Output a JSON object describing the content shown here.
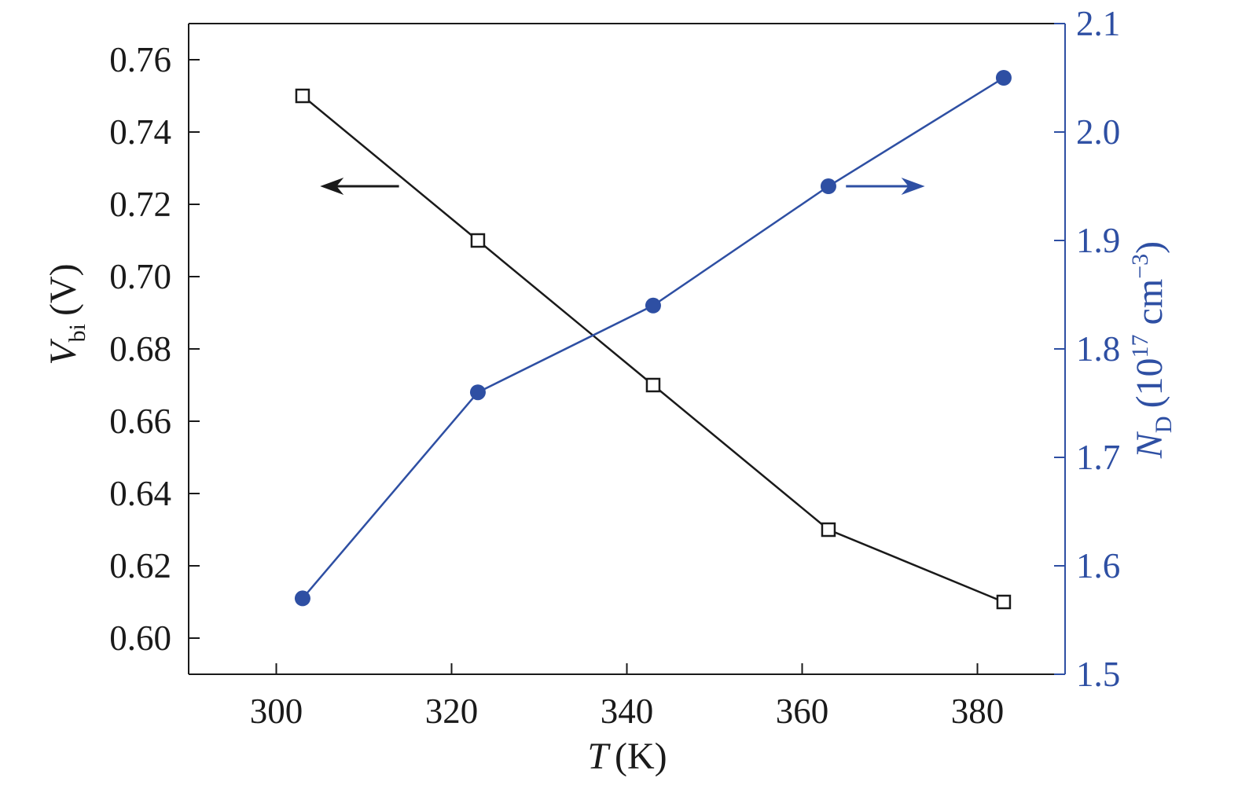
{
  "chart_data": {
    "type": "line",
    "title": "",
    "xlabel": {
      "symbol": "T",
      "unit": "(K)"
    },
    "ylabel_left": {
      "symbol": "V",
      "subscript": "bi",
      "unit": "(V)"
    },
    "ylabel_right": {
      "symbol": "N",
      "subscript": "D",
      "unit_open": "(10",
      "superscript": "17",
      "unit_mid": " cm",
      "unit_sup": "−3",
      "unit_close": ")"
    },
    "xlim": [
      290,
      390
    ],
    "ylim_left": [
      0.59,
      0.77
    ],
    "ylim_right": [
      1.5,
      2.1
    ],
    "x_ticks": [
      300,
      320,
      340,
      360,
      380
    ],
    "x_tick_labels": [
      "300",
      "320",
      "340",
      "360",
      "380"
    ],
    "y_left_ticks": [
      0.6,
      0.62,
      0.64,
      0.66,
      0.68,
      0.7,
      0.72,
      0.74,
      0.76
    ],
    "y_left_tick_labels": [
      "0.60",
      "0.62",
      "0.64",
      "0.66",
      "0.68",
      "0.70",
      "0.72",
      "0.74",
      "0.76"
    ],
    "y_right_ticks": [
      1.5,
      1.6,
      1.7,
      1.8,
      1.9,
      2.0,
      2.1
    ],
    "y_right_tick_labels": [
      "1.5",
      "1.6",
      "1.7",
      "1.8",
      "1.9",
      "2.0",
      "2.1"
    ],
    "x": [
      303,
      323,
      343,
      363,
      383
    ],
    "series": [
      {
        "axis": "left",
        "marker": "open-square",
        "color": "#1a1a1a",
        "values": [
          0.75,
          0.71,
          0.67,
          0.63,
          0.61
        ]
      },
      {
        "axis": "right",
        "marker": "filled-circle",
        "color": "#2e4fa3",
        "values": [
          1.57,
          1.76,
          1.84,
          1.95,
          2.05
        ]
      }
    ],
    "annotations": [
      {
        "type": "arrow",
        "direction": "left",
        "series_axis": "left",
        "color": "#1a1a1a",
        "x_from": 314,
        "x_to": 305,
        "y": 0.725
      },
      {
        "type": "arrow",
        "direction": "right",
        "series_axis": "right",
        "color": "#2e4fa3",
        "x_from": 365,
        "x_to": 374,
        "y": 1.95
      }
    ],
    "grid": false,
    "legend": "none"
  }
}
